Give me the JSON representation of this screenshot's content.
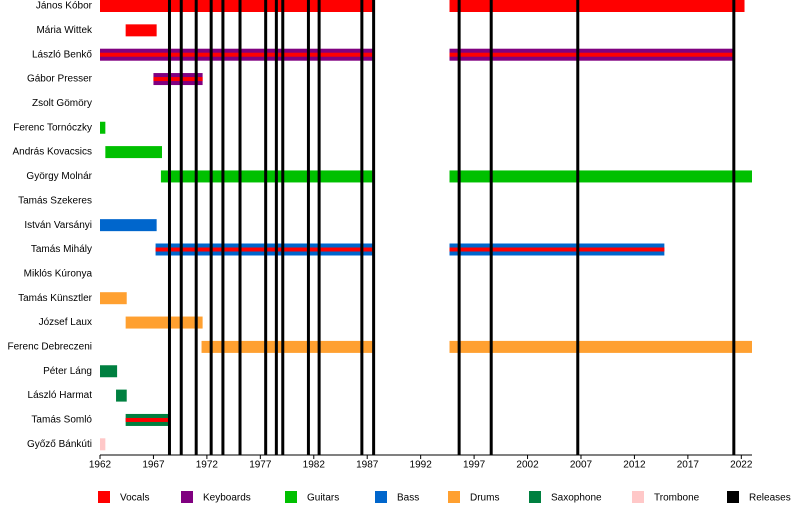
{
  "chart_data": {
    "type": "timeline",
    "xlim": [
      1962,
      2023
    ],
    "xticks": [
      1962,
      1967,
      1972,
      1977,
      1982,
      1987,
      1992,
      1997,
      2002,
      2007,
      2012,
      2017,
      2022
    ],
    "roles": [
      {
        "name": "Vocals",
        "color": "#ff0000"
      },
      {
        "name": "Keyboards",
        "color": "#800080"
      },
      {
        "name": "Guitars",
        "color": "#00c000"
      },
      {
        "name": "Bass",
        "color": "#0066cc"
      },
      {
        "name": "Drums",
        "color": "#ffa030"
      },
      {
        "name": "Saxophone",
        "color": "#008040"
      },
      {
        "name": "Trombone",
        "color": "#ffc8c8"
      }
    ],
    "members": [
      {
        "name": "János Kóbor",
        "role": "Vocals",
        "spans": [
          {
            "start": 1962,
            "end": 1987.7
          },
          {
            "start": 1994.7,
            "end": 2022.3
          }
        ]
      },
      {
        "name": "Mária Wittek",
        "role": "Vocals",
        "spans": [
          {
            "start": 1964.4,
            "end": 1967.3
          }
        ]
      },
      {
        "name": "László Benkő",
        "role": "Keyboards",
        "role2": "Vocals",
        "spans": [
          {
            "start": 1962,
            "end": 1987.7
          },
          {
            "start": 1994.7,
            "end": 2021.3
          }
        ]
      },
      {
        "name": "Gábor Presser",
        "role": "Keyboards",
        "role2": "Vocals",
        "spans": [
          {
            "start": 1967.0,
            "end": 1971.6
          }
        ]
      },
      {
        "name": "Zsolt Gömöry",
        "role": "Keyboards",
        "spans": []
      },
      {
        "name": "Ferenc Tornóczky",
        "role": "Guitars",
        "spans": [
          {
            "start": 1962,
            "end": 1962.5
          }
        ]
      },
      {
        "name": "András Kovacsics",
        "role": "Guitars",
        "spans": [
          {
            "start": 1962.5,
            "end": 1967.8
          }
        ]
      },
      {
        "name": "György Molnár",
        "role": "Guitars",
        "spans": [
          {
            "start": 1967.7,
            "end": 1987.7
          },
          {
            "start": 1994.7,
            "end": 2023
          }
        ]
      },
      {
        "name": "Tamás Szekeres",
        "role": "Guitars",
        "spans": []
      },
      {
        "name": "István Varsányi",
        "role": "Bass",
        "spans": [
          {
            "start": 1962,
            "end": 1967.3
          }
        ]
      },
      {
        "name": "Tamás Mihály",
        "role": "Bass",
        "role2": "Vocals",
        "spans": [
          {
            "start": 1967.2,
            "end": 1987.7
          },
          {
            "start": 1994.7,
            "end": 2014.8
          }
        ]
      },
      {
        "name": "Miklós Kúronya",
        "role": "Bass",
        "spans": []
      },
      {
        "name": "Tamás Künsztler",
        "role": "Drums",
        "spans": [
          {
            "start": 1962,
            "end": 1964.5
          }
        ]
      },
      {
        "name": "József Laux",
        "role": "Drums",
        "spans": [
          {
            "start": 1964.4,
            "end": 1971.6
          }
        ]
      },
      {
        "name": "Ferenc Debreczeni",
        "role": "Drums",
        "spans": [
          {
            "start": 1971.5,
            "end": 1987.7
          },
          {
            "start": 1994.7,
            "end": 2023
          }
        ]
      },
      {
        "name": "Péter Láng",
        "role": "Saxophone",
        "spans": [
          {
            "start": 1962,
            "end": 1963.6
          }
        ]
      },
      {
        "name": "László Harmat",
        "role": "Saxophone",
        "spans": [
          {
            "start": 1963.5,
            "end": 1964.5
          }
        ]
      },
      {
        "name": "Tamás Somló",
        "role": "Saxophone",
        "role2": "Vocals",
        "spans": [
          {
            "start": 1964.4,
            "end": 1968.6
          }
        ]
      },
      {
        "name": "Győző Bánkúti",
        "role": "Trombone",
        "spans": [
          {
            "start": 1962,
            "end": 1962.5
          }
        ]
      }
    ],
    "releases": {
      "name": "Releases",
      "color": "#000000",
      "values": [
        1968.5,
        1969.6,
        1971.0,
        1972.4,
        1973.5,
        1975.1,
        1977.5,
        1978.5,
        1979.1,
        1981.5,
        1982.5,
        1986.5,
        1987.6,
        1995.6,
        1998.6,
        2006.7,
        2021.3
      ]
    }
  }
}
